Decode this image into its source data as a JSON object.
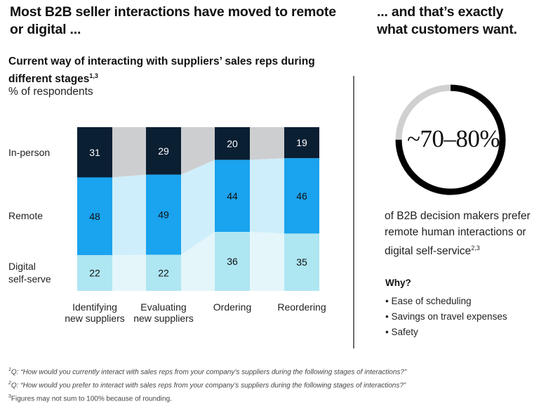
{
  "headline": {
    "left": "Most B2B seller interactions have moved to remote or digital ...",
    "right": "... and that’s exactly what customers want."
  },
  "chart_data": {
    "type": "bar",
    "stacked": true,
    "title": "Current way of interacting with suppliers’ sales reps during different stages",
    "title_superscript": "1,3",
    "units": "% of respondents",
    "categories": [
      "Identifying new suppliers",
      "Evaluating new suppliers",
      "Ordering",
      "Reordering"
    ],
    "series": [
      {
        "name": "In-person",
        "values": [
          31,
          29,
          20,
          19
        ],
        "color": "#0b1f33",
        "label_color": "#ffffff"
      },
      {
        "name": "Remote",
        "values": [
          48,
          49,
          44,
          46
        ],
        "color": "#1aa3ee",
        "label_color": "#111111"
      },
      {
        "name": "Digital self-serve",
        "values": [
          22,
          22,
          36,
          35
        ],
        "color": "#aee6f2",
        "label_color": "#111111"
      }
    ],
    "band_colors": [
      "#cdced0",
      "#cfeefb",
      "#e4f6fa"
    ],
    "series_labels": [
      "In-person",
      "Remote",
      "Digital",
      "self-serve"
    ]
  },
  "highlight": {
    "value": "~70–80%",
    "ring_fraction": 0.75,
    "ring_color": "#000000",
    "ring_track_color": "#d0d0d0",
    "description": "of B2B decision makers prefer remote human interactions or digital self-service",
    "description_superscript": "2,3",
    "why_title": "Why?",
    "reasons": [
      "• Ease of scheduling",
      "• Savings on travel expenses",
      "• Safety"
    ]
  },
  "footnotes": [
    {
      "mark": "1",
      "text": "Q: “How would you currently interact with sales reps from your company’s suppliers during the following stages of interactions?”"
    },
    {
      "mark": "2",
      "text": "Q: “How would you prefer to interact with sales reps from your company’s suppliers during the following stages of interactions?”"
    },
    {
      "mark": "3",
      "text": "Figures may not sum to 100% because of rounding."
    }
  ]
}
